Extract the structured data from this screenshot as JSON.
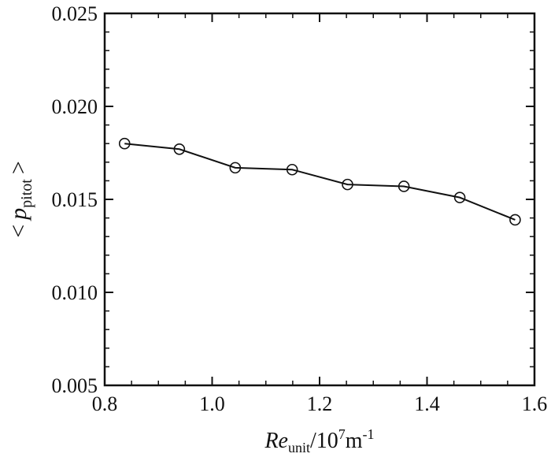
{
  "chart_data": {
    "type": "line",
    "title": "",
    "x": [
      0.837,
      0.939,
      1.043,
      1.149,
      1.252,
      1.357,
      1.461,
      1.564
    ],
    "series": [
      {
        "values": [
          0.018,
          0.0177,
          0.0167,
          0.0166,
          0.0158,
          0.0157,
          0.0151,
          0.0139
        ]
      }
    ],
    "marker": "open-circle",
    "line_color": "#111111",
    "xlim": [
      0.8,
      1.6
    ],
    "ylim": [
      0.005,
      0.025
    ],
    "xticks": [
      "0.8",
      "1.0",
      "1.2",
      "1.4",
      "1.6"
    ],
    "yticks": [
      "0.005",
      "0.010",
      "0.015",
      "0.020",
      "0.025"
    ],
    "xlabel": {
      "main": "Re",
      "sub": "unit",
      "mid": "/10",
      "sup": "7",
      "unit": "m",
      "unit_sup": "-1"
    },
    "ylabel": {
      "open": "<",
      "main": "p",
      "sub": "pitot",
      "close": ">"
    },
    "grid": false,
    "legend": "none"
  }
}
